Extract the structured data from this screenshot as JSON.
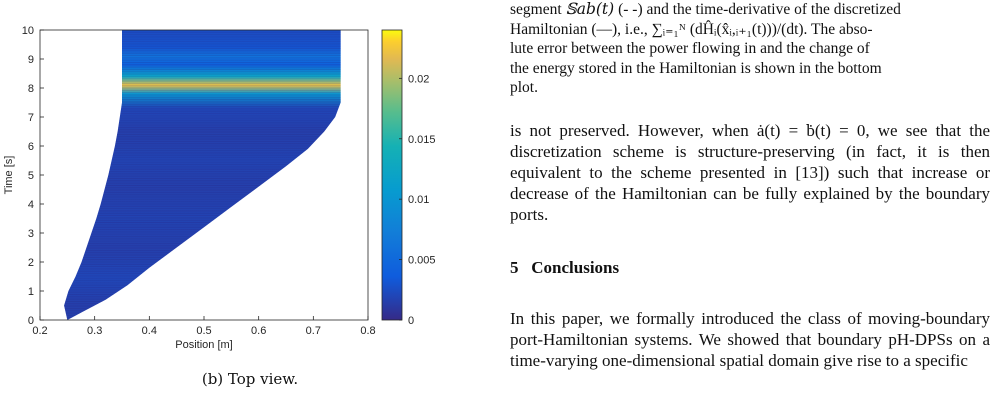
{
  "figure": {
    "caption": "(b) Top view.",
    "chart_data": {
      "type": "heatmap",
      "title": "",
      "xlabel": "Position [m]",
      "ylabel": "Time [s]",
      "xlim": [
        0.2,
        0.8
      ],
      "ylim": [
        0,
        10
      ],
      "xticks": [
        "0.2",
        "0.3",
        "0.4",
        "0.5",
        "0.6",
        "0.7",
        "0.8"
      ],
      "yticks": [
        "0",
        "1",
        "2",
        "3",
        "4",
        "5",
        "6",
        "7",
        "8",
        "9",
        "10"
      ],
      "colorbar": {
        "range": [
          0,
          0.024
        ],
        "ticks": [
          "0",
          "0.005",
          "0.01",
          "0.015",
          "0.02"
        ],
        "colormap": "parula"
      },
      "domain_left_boundary": [
        {
          "t": 0,
          "x": 0.25
        },
        {
          "t": 0.5,
          "x": 0.244
        },
        {
          "t": 1,
          "x": 0.252
        },
        {
          "t": 1.5,
          "x": 0.265
        },
        {
          "t": 2,
          "x": 0.276
        },
        {
          "t": 2.5,
          "x": 0.285
        },
        {
          "t": 3,
          "x": 0.294
        },
        {
          "t": 3.5,
          "x": 0.303
        },
        {
          "t": 4,
          "x": 0.311
        },
        {
          "t": 4.5,
          "x": 0.318
        },
        {
          "t": 5,
          "x": 0.325
        },
        {
          "t": 5.5,
          "x": 0.331
        },
        {
          "t": 6,
          "x": 0.337
        },
        {
          "t": 6.5,
          "x": 0.342
        },
        {
          "t": 7,
          "x": 0.346
        },
        {
          "t": 7.5,
          "x": 0.35
        },
        {
          "t": 10,
          "x": 0.35
        }
      ],
      "domain_right_boundary": [
        {
          "t": 0,
          "x": 0.25
        },
        {
          "t": 0.3,
          "x": 0.28
        },
        {
          "t": 0.7,
          "x": 0.32
        },
        {
          "t": 1.2,
          "x": 0.36
        },
        {
          "t": 1.8,
          "x": 0.4
        },
        {
          "t": 2.5,
          "x": 0.45
        },
        {
          "t": 3.2,
          "x": 0.5
        },
        {
          "t": 3.9,
          "x": 0.55
        },
        {
          "t": 4.6,
          "x": 0.6
        },
        {
          "t": 5.3,
          "x": 0.65
        },
        {
          "t": 5.9,
          "x": 0.69
        },
        {
          "t": 6.5,
          "x": 0.72
        },
        {
          "t": 7,
          "x": 0.74
        },
        {
          "t": 7.5,
          "x": 0.75
        },
        {
          "t": 10,
          "x": 0.75
        }
      ],
      "value_bands": [
        {
          "t": 0.5,
          "v": 0.0015
        },
        {
          "t": 1.5,
          "v": 0.002
        },
        {
          "t": 2.5,
          "v": 0.0015
        },
        {
          "t": 3.5,
          "v": 0.0018
        },
        {
          "t": 4.5,
          "v": 0.0015
        },
        {
          "t": 5.5,
          "v": 0.0018
        },
        {
          "t": 6.5,
          "v": 0.0015
        },
        {
          "t": 7.3,
          "v": 0.002
        },
        {
          "t": 7.8,
          "v": 0.01
        },
        {
          "t": 8.1,
          "v": 0.022
        },
        {
          "t": 8.4,
          "v": 0.012
        },
        {
          "t": 8.8,
          "v": 0.004
        },
        {
          "t": 9.1,
          "v": 0.006
        },
        {
          "t": 9.4,
          "v": 0.003
        },
        {
          "t": 9.8,
          "v": 0.0025
        }
      ]
    }
  },
  "text": {
    "cap_line1_a": "segment ",
    "cap_line1_seg": "𝕊ab(t)",
    "cap_line1_b": " (- -) and the time-derivative of the discretized",
    "cap_line2": "Hamiltonian (—), i.e., ∑ᵢ₌₁ᴺ (dĤᵢ(x̂ᵢ,ᵢ₊₁(t)))/(dt). The abso-",
    "cap_line3": "lute error between the power flowing in and the change of",
    "cap_line4": "the energy stored in the Hamiltonian is shown in the bottom",
    "cap_line5": "plot.",
    "para1": "is not preserved. However, when ȧ(t) = ḃ(t) = 0, we see that the discretization scheme is structure-preserving (in fact, it is then equivalent to the scheme presented in [13]) such that increase or decrease of the Hamiltonian can be fully explained by the boundary ports.",
    "section_number": "5",
    "section_title": "Conclusions",
    "para2": "In this paper, we formally introduced the class of moving-boundary port-Hamiltonian systems. We showed that boundary pH-DPSs on a time-varying one-dimensional spatial domain give rise to a specific"
  }
}
